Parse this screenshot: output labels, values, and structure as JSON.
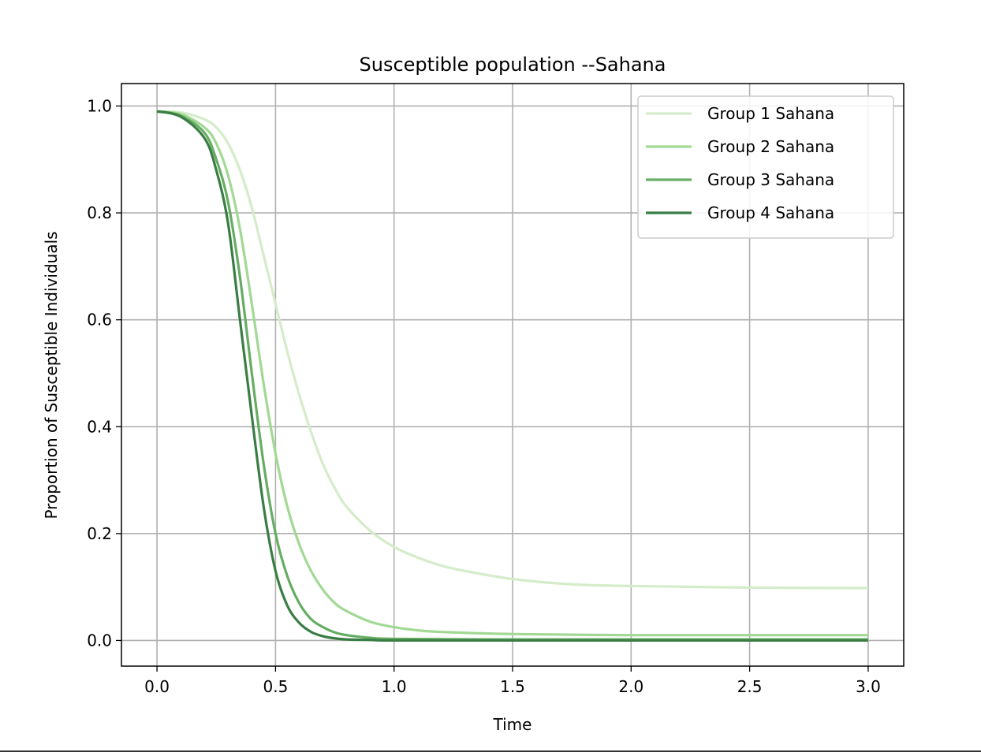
{
  "chart_data": {
    "type": "line",
    "title": "Susceptible population --Sahana",
    "xlabel": "Time",
    "ylabel": "Proportion of Susceptible Individuals",
    "xlim": [
      -0.15,
      3.15
    ],
    "ylim": [
      -0.048,
      1.042
    ],
    "x_ticks": [
      "0.0",
      "0.5",
      "1.0",
      "1.5",
      "2.0",
      "2.5",
      "3.0"
    ],
    "y_ticks": [
      "0.0",
      "0.2",
      "0.4",
      "0.6",
      "0.8",
      "1.0"
    ],
    "grid": true,
    "legend_position": "top-right",
    "series": [
      {
        "name": "Group 1 Sahana",
        "color": "#d4ecc9",
        "x": [
          0.0,
          0.1,
          0.2,
          0.25,
          0.3,
          0.35,
          0.4,
          0.45,
          0.5,
          0.55,
          0.6,
          0.65,
          0.7,
          0.75,
          0.8,
          0.9,
          1.0,
          1.1,
          1.2,
          1.3,
          1.5,
          1.75,
          2.0,
          2.5,
          3.0
        ],
        "y": [
          0.99,
          0.988,
          0.975,
          0.96,
          0.93,
          0.88,
          0.81,
          0.72,
          0.63,
          0.54,
          0.46,
          0.39,
          0.33,
          0.285,
          0.25,
          0.205,
          0.175,
          0.155,
          0.14,
          0.13,
          0.115,
          0.105,
          0.102,
          0.099,
          0.098
        ]
      },
      {
        "name": "Group 2 Sahana",
        "color": "#a1d993",
        "x": [
          0.0,
          0.1,
          0.2,
          0.25,
          0.3,
          0.35,
          0.4,
          0.45,
          0.5,
          0.55,
          0.6,
          0.65,
          0.7,
          0.75,
          0.8,
          0.9,
          1.0,
          1.1,
          1.2,
          1.5,
          2.0,
          2.5,
          3.0
        ],
        "y": [
          0.99,
          0.985,
          0.96,
          0.93,
          0.87,
          0.77,
          0.63,
          0.48,
          0.35,
          0.25,
          0.18,
          0.13,
          0.095,
          0.07,
          0.055,
          0.035,
          0.025,
          0.019,
          0.016,
          0.012,
          0.01,
          0.01,
          0.01
        ]
      },
      {
        "name": "Group 3 Sahana",
        "color": "#66ad63",
        "x": [
          0.0,
          0.1,
          0.2,
          0.25,
          0.3,
          0.35,
          0.4,
          0.45,
          0.5,
          0.55,
          0.6,
          0.65,
          0.7,
          0.75,
          0.8,
          0.9,
          1.0,
          1.5,
          2.0,
          2.5,
          3.0
        ],
        "y": [
          0.99,
          0.982,
          0.95,
          0.9,
          0.82,
          0.68,
          0.5,
          0.33,
          0.2,
          0.12,
          0.07,
          0.04,
          0.025,
          0.015,
          0.01,
          0.005,
          0.003,
          0.002,
          0.002,
          0.002,
          0.002
        ]
      },
      {
        "name": "Group 4 Sahana",
        "color": "#3a7d44",
        "x": [
          0.0,
          0.1,
          0.2,
          0.25,
          0.3,
          0.35,
          0.4,
          0.45,
          0.5,
          0.55,
          0.6,
          0.65,
          0.7,
          0.75,
          0.8,
          0.9,
          1.0,
          1.5,
          2.0,
          2.5,
          3.0
        ],
        "y": [
          0.99,
          0.98,
          0.94,
          0.88,
          0.78,
          0.6,
          0.42,
          0.25,
          0.13,
          0.065,
          0.033,
          0.016,
          0.008,
          0.004,
          0.002,
          0.001,
          0.0,
          0.0,
          0.0,
          0.0,
          0.0
        ]
      }
    ]
  }
}
